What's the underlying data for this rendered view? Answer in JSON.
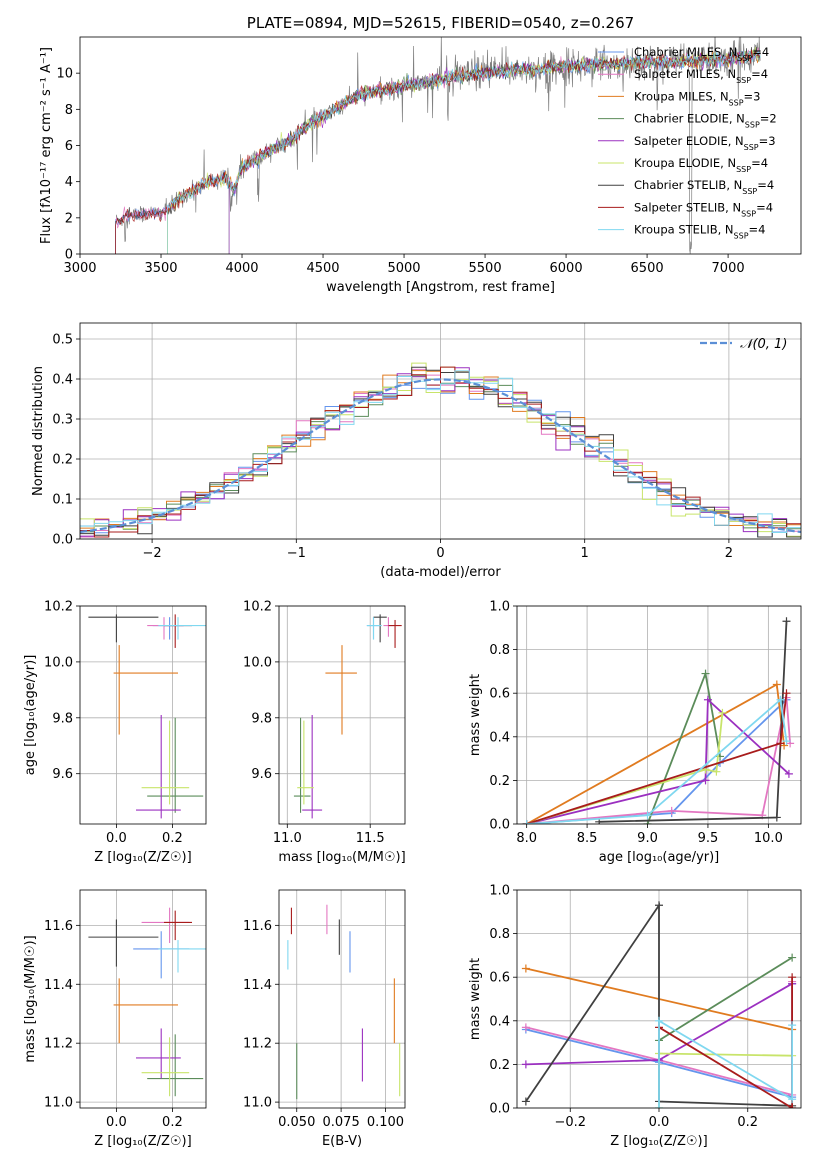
{
  "colors": [
    "#6495ed",
    "#e377c2",
    "#e07b20",
    "#5b8c5a",
    "#9b30c0",
    "#c8e46a",
    "#404040",
    "#a81c1c",
    "#80d8f0"
  ],
  "chart_data": [
    {
      "id": "spectrum",
      "type": "line",
      "title": "PLATE=0894, MJD=52615, FIBERID=0540, z=0.267",
      "xlabel": "wavelength [Angstrom, rest frame]",
      "ylabel": "Flux [fλ10⁻¹⁷ erg cm⁻² s⁻¹ A⁻¹]",
      "xlim": [
        3000,
        7450
      ],
      "ylim": [
        0,
        12
      ],
      "xticks": [
        3000,
        3500,
        4000,
        4500,
        5000,
        5500,
        6000,
        6500,
        7000
      ],
      "yticks": [
        0,
        2,
        4,
        6,
        8,
        10
      ],
      "grid": false,
      "legend_placement": "upper-right",
      "legend": [
        "Chabrier MILES, N_SSP=4",
        "Salpeter MILES, N_SSP=4",
        "Kroupa MILES, N_SSP=3",
        "Chabrier ELODIE, N_SSP=2",
        "Salpeter ELODIE, N_SSP=3",
        "Kroupa ELODIE, N_SSP=4",
        "Chabrier STELIB, N_SSP=4",
        "Salpeter STELIB, N_SSP=4",
        "Kroupa STELIB, N_SSP=4"
      ],
      "continuum": {
        "x": [
          3220,
          3300,
          3400,
          3500,
          3550,
          3600,
          3700,
          3800,
          3900,
          3950,
          4000,
          4100,
          4200,
          4300,
          4400,
          4500,
          4600,
          4700,
          4800,
          4900,
          5000,
          5100,
          5200,
          5300,
          5400,
          5500,
          5600,
          5700,
          5800,
          5900,
          6000,
          6100,
          6200,
          6300,
          6400,
          6500,
          6600,
          6700,
          6800,
          6900,
          7000,
          7100,
          7200
        ],
        "y": [
          1.8,
          2.1,
          2.2,
          2.3,
          2.5,
          3.0,
          3.5,
          4.0,
          4.2,
          3.5,
          4.8,
          5.3,
          5.9,
          6.3,
          7.1,
          7.6,
          8.1,
          8.7,
          9.0,
          9.1,
          9.3,
          9.4,
          9.6,
          9.8,
          9.9,
          10.0,
          10.1,
          10.2,
          10.2,
          10.3,
          10.4,
          10.4,
          10.5,
          10.5,
          10.6,
          10.6,
          10.6,
          10.6,
          10.7,
          10.7,
          10.8,
          10.9,
          11.0
        ]
      },
      "model_starts": [
        3220,
        3540,
        3920
      ]
    },
    {
      "id": "residuals",
      "type": "line",
      "title": "",
      "xlabel": "(data-model)/error",
      "ylabel": "Normed distribution",
      "xlim": [
        -2.5,
        2.5
      ],
      "ylim": [
        0,
        0.54
      ],
      "xticks": [
        -2,
        -1,
        0,
        1,
        2
      ],
      "yticks": [
        0.0,
        0.1,
        0.2,
        0.3,
        0.4,
        0.5
      ],
      "grid": true,
      "legend": [
        "𝒩(0, 1)"
      ],
      "legend_placement": "upper-right",
      "bin_width": 0.1
    },
    {
      "id": "age-vs-Z",
      "type": "scatter",
      "xlabel": "Z [log₁₀(Z/Z☉)]",
      "ylabel": "age  [log₁₀(age/yr)]",
      "xlim": [
        -0.13,
        0.32
      ],
      "ylim": [
        9.42,
        10.2
      ],
      "xticks": [
        0.0,
        0.2
      ],
      "yticks": [
        9.6,
        9.8,
        10.0,
        10.2
      ],
      "grid": true,
      "points": [
        {
          "x": 0.19,
          "y": 10.13,
          "xerr": [
            0.06,
            0.05
          ],
          "yerr": [
            0.05,
            0.03
          ],
          "c": 0
        },
        {
          "x": 0.17,
          "y": 10.13,
          "xerr": [
            0.06,
            0.07
          ],
          "yerr": [
            0.05,
            0.03
          ],
          "c": 1
        },
        {
          "x": 0.01,
          "y": 9.96,
          "xerr": [
            0.02,
            0.21
          ],
          "yerr": [
            0.22,
            0.1
          ],
          "c": 2
        },
        {
          "x": 0.21,
          "y": 9.52,
          "xerr": [
            0.1,
            0.1
          ],
          "yerr": [
            0.06,
            0.28
          ],
          "c": 3
        },
        {
          "x": 0.16,
          "y": 9.47,
          "xerr": [
            0.09,
            0.07
          ],
          "yerr": [
            0.03,
            0.34
          ],
          "c": 4
        },
        {
          "x": 0.19,
          "y": 9.55,
          "xerr": [
            0.1,
            0.07
          ],
          "yerr": [
            0.06,
            0.24
          ],
          "c": 5
        },
        {
          "x": 0.0,
          "y": 10.16,
          "xerr": [
            0.1,
            0.15
          ],
          "yerr": [
            0.09,
            0.01
          ],
          "c": 6
        },
        {
          "x": 0.21,
          "y": 10.13,
          "xerr": [
            0.04,
            0.06
          ],
          "yerr": [
            0.08,
            0.04
          ],
          "c": 7
        },
        {
          "x": 0.22,
          "y": 10.13,
          "xerr": [
            0.07,
            0.1
          ],
          "yerr": [
            0.05,
            0.03
          ],
          "c": 8
        }
      ]
    },
    {
      "id": "age-vs-mass",
      "type": "scatter",
      "xlabel": "mass [log₁₀(M/M☉)]",
      "ylabel": "",
      "xlim": [
        10.95,
        11.71
      ],
      "ylim": [
        9.42,
        10.2
      ],
      "xticks": [
        11.0,
        11.5
      ],
      "yticks": [
        9.6,
        9.8,
        10.0,
        10.2
      ],
      "grid": true,
      "points": [
        {
          "x": 11.52,
          "y": 10.13,
          "xerr": [
            0.04,
            0.04
          ],
          "yerr": [
            0.05,
            0.03
          ],
          "c": 0
        },
        {
          "x": 11.61,
          "y": 10.13,
          "xerr": [
            0.03,
            0.03
          ],
          "yerr": [
            0.04,
            0.03
          ],
          "c": 1
        },
        {
          "x": 11.33,
          "y": 9.96,
          "xerr": [
            0.1,
            0.09
          ],
          "yerr": [
            0.22,
            0.1
          ],
          "c": 2
        },
        {
          "x": 11.08,
          "y": 9.52,
          "xerr": [
            0.04,
            0.06
          ],
          "yerr": [
            0.06,
            0.28
          ],
          "c": 3
        },
        {
          "x": 11.15,
          "y": 9.47,
          "xerr": [
            0.06,
            0.06
          ],
          "yerr": [
            0.03,
            0.34
          ],
          "c": 4
        },
        {
          "x": 11.1,
          "y": 9.55,
          "xerr": [
            0.04,
            0.06
          ],
          "yerr": [
            0.06,
            0.24
          ],
          "c": 5
        },
        {
          "x": 11.56,
          "y": 10.16,
          "xerr": [
            0.04,
            0.04
          ],
          "yerr": [
            0.09,
            0.01
          ],
          "c": 6
        },
        {
          "x": 11.65,
          "y": 10.13,
          "xerr": [
            0.04,
            0.04
          ],
          "yerr": [
            0.08,
            0.02
          ],
          "c": 7
        },
        {
          "x": 11.52,
          "y": 10.13,
          "xerr": [
            0.04,
            0.05
          ],
          "yerr": [
            0.05,
            0.03
          ],
          "c": 8
        }
      ]
    },
    {
      "id": "weight-vs-age",
      "type": "line",
      "xlabel": "age  [log₁₀(age/yr)]",
      "ylabel": "mass weight",
      "xlim": [
        7.92,
        10.27
      ],
      "ylim": [
        0,
        1.0
      ],
      "xticks": [
        8.0,
        8.5,
        9.0,
        9.5,
        10.0
      ],
      "yticks": [
        0.0,
        0.2,
        0.4,
        0.6,
        0.8,
        1.0
      ],
      "grid": true,
      "series": [
        {
          "c": 0,
          "x": [
            8.0,
            9.2,
            9.6,
            10.15
          ],
          "y": [
            0.0,
            0.05,
            0.28,
            0.57
          ]
        },
        {
          "c": 1,
          "x": [
            8.0,
            9.2,
            9.95,
            10.15,
            10.18
          ],
          "y": [
            0.0,
            0.06,
            0.04,
            0.58,
            0.37
          ]
        },
        {
          "c": 2,
          "x": [
            8.0,
            10.07,
            10.13
          ],
          "y": [
            0.0,
            0.64,
            0.36
          ]
        },
        {
          "c": 3,
          "x": [
            9.0,
            9.48,
            9.6
          ],
          "y": [
            0.0,
            0.69,
            0.31
          ]
        },
        {
          "c": 4,
          "x": [
            8.0,
            9.48,
            9.5,
            10.17
          ],
          "y": [
            0.0,
            0.2,
            0.57,
            0.23
          ]
        },
        {
          "c": 5,
          "x": [
            8.0,
            9.48,
            9.57,
            9.62
          ],
          "y": [
            0.0,
            0.25,
            0.24,
            0.51
          ]
        },
        {
          "c": 6,
          "x": [
            8.6,
            10.07,
            10.15
          ],
          "y": [
            0.01,
            0.03,
            0.93
          ]
        },
        {
          "c": 7,
          "x": [
            8.0,
            10.1,
            10.15
          ],
          "y": [
            0.0,
            0.37,
            0.6
          ]
        },
        {
          "c": 8,
          "x": [
            8.0,
            9.0,
            10.1,
            10.15
          ],
          "y": [
            0.0,
            0.04,
            0.57,
            0.38
          ]
        }
      ]
    },
    {
      "id": "mass-vs-Z",
      "type": "scatter",
      "xlabel": "Z [log₁₀(Z/Z☉)]",
      "ylabel": "mass [log₁₀(M/M☉)]",
      "xlim": [
        -0.13,
        0.32
      ],
      "ylim": [
        10.98,
        11.72
      ],
      "xticks": [
        0.0,
        0.2
      ],
      "yticks": [
        11.0,
        11.2,
        11.4,
        11.6
      ],
      "grid": true,
      "points": [
        {
          "x": 0.16,
          "y": 11.52,
          "xerr": [
            0.1,
            0.1
          ],
          "yerr": [
            0.1,
            0.06
          ],
          "c": 0
        },
        {
          "x": 0.19,
          "y": 11.61,
          "xerr": [
            0.1,
            0.07
          ],
          "yerr": [
            0.07,
            0.05
          ],
          "c": 1
        },
        {
          "x": 0.01,
          "y": 11.33,
          "xerr": [
            0.02,
            0.21
          ],
          "yerr": [
            0.13,
            0.09
          ],
          "c": 2
        },
        {
          "x": 0.21,
          "y": 11.08,
          "xerr": [
            0.1,
            0.1
          ],
          "yerr": [
            0.06,
            0.15
          ],
          "c": 3
        },
        {
          "x": 0.16,
          "y": 11.15,
          "xerr": [
            0.09,
            0.07
          ],
          "yerr": [
            0.07,
            0.1
          ],
          "c": 4
        },
        {
          "x": 0.19,
          "y": 11.1,
          "xerr": [
            0.1,
            0.07
          ],
          "yerr": [
            0.08,
            0.12
          ],
          "c": 5
        },
        {
          "x": 0.0,
          "y": 11.56,
          "xerr": [
            0.1,
            0.15
          ],
          "yerr": [
            0.1,
            0.06
          ],
          "c": 6
        },
        {
          "x": 0.21,
          "y": 11.61,
          "xerr": [
            0.04,
            0.06
          ],
          "yerr": [
            0.06,
            0.04
          ],
          "c": 7
        },
        {
          "x": 0.22,
          "y": 11.52,
          "xerr": [
            0.07,
            0.1
          ],
          "yerr": [
            0.08,
            0.03
          ],
          "c": 8
        }
      ]
    },
    {
      "id": "mass-vs-EBV",
      "type": "scatter",
      "xlabel": "E(B-V)",
      "ylabel": "",
      "xlim": [
        0.04,
        0.111
      ],
      "ylim": [
        10.98,
        11.72
      ],
      "xticks": [
        0.05,
        0.075,
        0.1
      ],
      "yticks": [
        11.0,
        11.2,
        11.4,
        11.6
      ],
      "grid": true,
      "points": [
        {
          "x": 0.08,
          "y": 11.52,
          "xerr": [
            0,
            0
          ],
          "yerr": [
            0.08,
            0.06
          ],
          "c": 0
        },
        {
          "x": 0.067,
          "y": 11.61,
          "xerr": [
            0,
            0
          ],
          "yerr": [
            0.04,
            0.06
          ],
          "c": 1
        },
        {
          "x": 0.105,
          "y": 11.33,
          "xerr": [
            0,
            0
          ],
          "yerr": [
            0.13,
            0.09
          ],
          "c": 2
        },
        {
          "x": 0.05,
          "y": 11.08,
          "xerr": [
            0,
            0
          ],
          "yerr": [
            0.07,
            0.12
          ],
          "c": 3
        },
        {
          "x": 0.087,
          "y": 11.15,
          "xerr": [
            0,
            0
          ],
          "yerr": [
            0.08,
            0.1
          ],
          "c": 4
        },
        {
          "x": 0.108,
          "y": 11.1,
          "xerr": [
            0,
            0
          ],
          "yerr": [
            0.08,
            0.1
          ],
          "c": 5
        },
        {
          "x": 0.074,
          "y": 11.56,
          "xerr": [
            0,
            0
          ],
          "yerr": [
            0.06,
            0.06
          ],
          "c": 6
        },
        {
          "x": 0.047,
          "y": 11.61,
          "xerr": [
            0,
            0
          ],
          "yerr": [
            0.04,
            0.05
          ],
          "c": 7
        },
        {
          "x": 0.045,
          "y": 11.52,
          "xerr": [
            0,
            0
          ],
          "yerr": [
            0.07,
            0.03
          ],
          "c": 8
        }
      ]
    },
    {
      "id": "weight-vs-Z",
      "type": "line",
      "xlabel": "Z [log₁₀(Z/Z☉)]",
      "ylabel": "mass weight",
      "xlim": [
        -0.32,
        0.32
      ],
      "ylim": [
        0,
        1.0
      ],
      "xticks": [
        -0.2,
        0.0,
        0.2
      ],
      "yticks": [
        0.0,
        0.2,
        0.4,
        0.6,
        0.8,
        1.0
      ],
      "grid": true,
      "series": [
        {
          "c": 0,
          "x": [
            -0.3,
            0.0,
            0.3,
            0.3
          ],
          "y": [
            0.36,
            0.21,
            0.05,
            0.57
          ]
        },
        {
          "c": 1,
          "x": [
            -0.3,
            0.0,
            0.3,
            0.3
          ],
          "y": [
            0.37,
            0.22,
            0.06,
            0.58
          ]
        },
        {
          "c": 2,
          "x": [
            -0.3,
            0.3
          ],
          "y": [
            0.64,
            0.36
          ]
        },
        {
          "c": 3,
          "x": [
            0.0,
            0.3
          ],
          "y": [
            0.31,
            0.69
          ]
        },
        {
          "c": 4,
          "x": [
            -0.3,
            0.0,
            0.3
          ],
          "y": [
            0.2,
            0.22,
            0.57
          ]
        },
        {
          "c": 5,
          "x": [
            0.0,
            0.0,
            0.3
          ],
          "y": [
            0.0,
            0.25,
            0.24
          ]
        },
        {
          "c": 6,
          "x": [
            -0.3,
            0.0,
            0.0,
            0.3
          ],
          "y": [
            0.03,
            0.93,
            0.03,
            0.01
          ]
        },
        {
          "c": 7,
          "x": [
            0.0,
            0.3,
            0.3
          ],
          "y": [
            0.37,
            0.0,
            0.6
          ]
        },
        {
          "c": 8,
          "x": [
            0.0,
            0.0,
            0.3,
            0.3
          ],
          "y": [
            0.0,
            0.4,
            0.04,
            0.38
          ]
        }
      ]
    }
  ]
}
